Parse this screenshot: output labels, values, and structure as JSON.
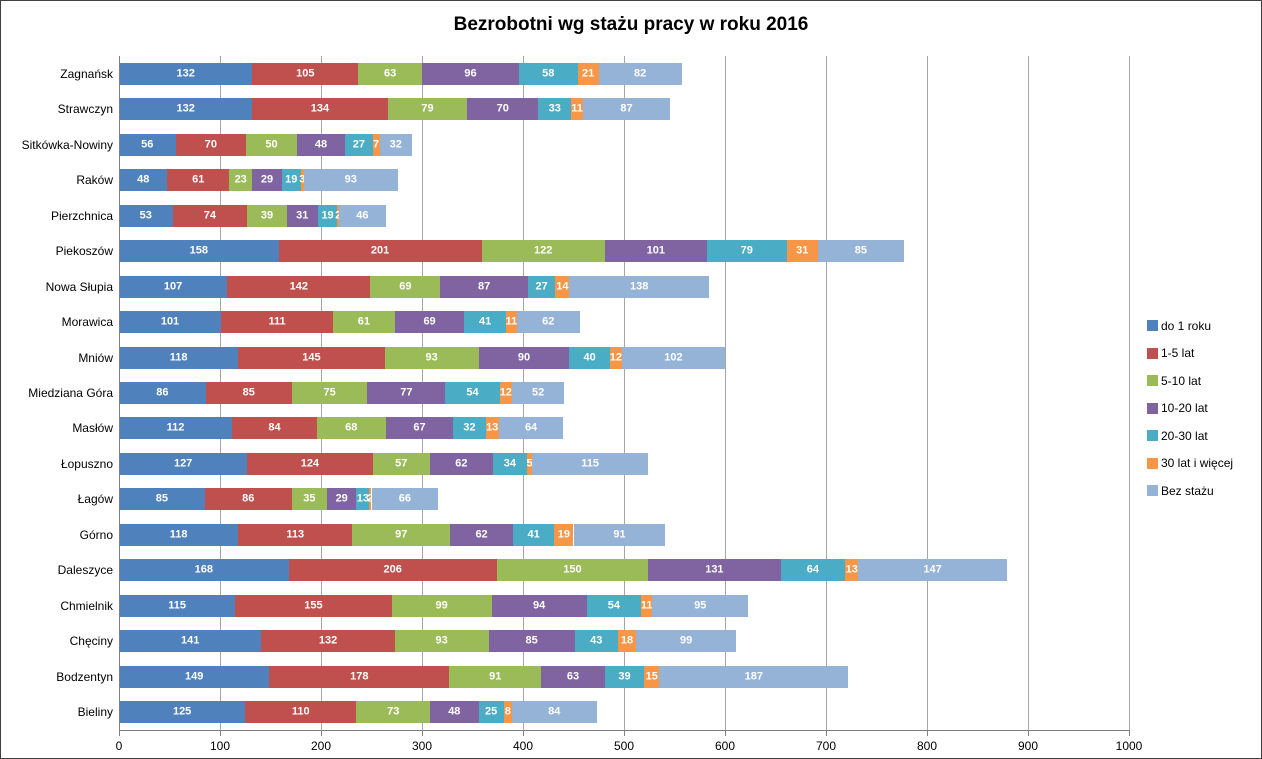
{
  "window": {
    "background": "#FFFFFF",
    "border_color": "#404040"
  },
  "chart_data": {
    "type": "bar",
    "orientation": "horizontal",
    "stacked": true,
    "title": "Bezrobotni wg stażu pracy w roku 2016",
    "categories": [
      "Zagnańsk",
      "Strawczyn",
      "Sitkówka-Nowiny",
      "Raków",
      "Pierzchnica",
      "Piekoszów",
      "Nowa Słupia",
      "Morawica",
      "Mniów",
      "Miedziana Góra",
      "Masłów",
      "Łopuszno",
      "Łagów",
      "Górno",
      "Daleszyce",
      "Chmielnik",
      "Chęciny",
      "Bodzentyn",
      "Bieliny"
    ],
    "series": [
      {
        "name": "do 1 roku",
        "color": "#4F81BD",
        "values": [
          132,
          132,
          56,
          48,
          53,
          158,
          107,
          101,
          118,
          86,
          112,
          127,
          85,
          118,
          168,
          115,
          141,
          149,
          125
        ]
      },
      {
        "name": "1-5 lat",
        "color": "#C0504D",
        "values": [
          105,
          134,
          70,
          61,
          74,
          201,
          142,
          111,
          145,
          85,
          84,
          124,
          86,
          113,
          206,
          155,
          132,
          178,
          110
        ]
      },
      {
        "name": "5-10 lat",
        "color": "#9BBB59",
        "values": [
          63,
          79,
          50,
          23,
          39,
          122,
          69,
          61,
          93,
          75,
          68,
          57,
          35,
          97,
          150,
          99,
          93,
          91,
          73
        ]
      },
      {
        "name": "10-20 lat",
        "color": "#8064A2",
        "values": [
          96,
          70,
          48,
          29,
          31,
          101,
          87,
          69,
          90,
          77,
          67,
          62,
          29,
          62,
          131,
          94,
          85,
          63,
          48
        ]
      },
      {
        "name": "20-30 lat",
        "color": "#4BACC6",
        "values": [
          58,
          33,
          27,
          19,
          19,
          79,
          27,
          41,
          40,
          54,
          32,
          34,
          13,
          41,
          64,
          54,
          43,
          39,
          25
        ]
      },
      {
        "name": "30 lat i więcej",
        "color": "#F79646",
        "values": [
          21,
          11,
          7,
          3,
          2,
          31,
          14,
          11,
          12,
          12,
          13,
          5,
          2,
          19,
          13,
          11,
          18,
          15,
          8
        ]
      },
      {
        "name": "Bez stażu",
        "color": "#95B3D7",
        "values": [
          82,
          87,
          32,
          93,
          46,
          85,
          138,
          62,
          102,
          52,
          64,
          115,
          66,
          91,
          147,
          95,
          99,
          187,
          84
        ]
      }
    ],
    "x_axis": {
      "min": 0,
      "max": 1000,
      "tick_step": 100,
      "tick_labels": [
        "0",
        "100",
        "200",
        "300",
        "400",
        "500",
        "600",
        "700",
        "800",
        "900",
        "1000"
      ]
    },
    "legend_position": "right",
    "grid": true,
    "value_labels": {
      "color": "#FFFFFF",
      "bold": true
    },
    "gridline_color": "#A6A6A6",
    "axis_color": "#7F7F7F"
  }
}
